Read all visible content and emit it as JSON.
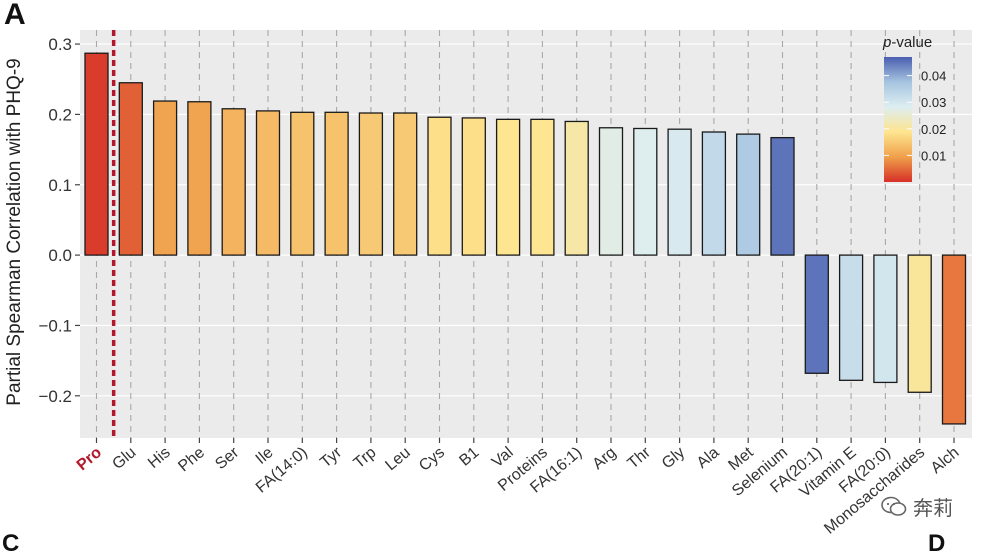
{
  "panel_label": "A",
  "bottom_labels": [
    "C",
    "D"
  ],
  "watermark": "奔莉",
  "chart_data": {
    "type": "bar",
    "title": "",
    "xlabel": "",
    "ylabel": "Partial Spearman Correlation with PHQ-9",
    "ylim": [
      -0.26,
      0.32
    ],
    "yticks": [
      -0.2,
      -0.1,
      0.0,
      0.1,
      0.2,
      0.3
    ],
    "ytick_labels": [
      "-0.2",
      "-0.1",
      "0.0",
      "0.1",
      "0.2",
      "0.3"
    ],
    "grid": true,
    "highlight": {
      "category": "Pro",
      "color": "#b2182b",
      "reference_line": "dashed, after first bar"
    },
    "categories": [
      "Pro",
      "Glu",
      "His",
      "Phe",
      "Ser",
      "Ile",
      "FA(14:0)",
      "Tyr",
      "Trp",
      "Leu",
      "Cys",
      "B1",
      "Val",
      "Proteins",
      "FA(16:1)",
      "Arg",
      "Thr",
      "Gly",
      "Ala",
      "Met",
      "Selenium",
      "FA(20:1)",
      "Vitamin E",
      "FA(20:0)",
      "Monosaccharides",
      "Alch"
    ],
    "values": [
      0.287,
      0.245,
      0.219,
      0.218,
      0.208,
      0.205,
      0.203,
      0.203,
      0.202,
      0.202,
      0.196,
      0.195,
      0.193,
      0.193,
      0.19,
      0.181,
      0.18,
      0.179,
      0.175,
      0.172,
      0.167,
      -0.168,
      -0.178,
      -0.181,
      -0.195,
      -0.24
    ],
    "pvalues": [
      0.001,
      0.004,
      0.01,
      0.01,
      0.012,
      0.013,
      0.014,
      0.014,
      0.015,
      0.015,
      0.018,
      0.018,
      0.019,
      0.019,
      0.021,
      0.027,
      0.028,
      0.029,
      0.033,
      0.036,
      0.045,
      0.045,
      0.032,
      0.03,
      0.02,
      0.006
    ],
    "legend": {
      "title_italic": "p",
      "title_rest": "-value",
      "placement": "top-right",
      "ticks": [
        0.04,
        0.03,
        0.02,
        0.01
      ],
      "tick_labels": [
        "0.04",
        "0.03",
        "0.02",
        "0.01"
      ],
      "range": [
        0.0,
        0.047
      ],
      "colors": [
        "#d73027",
        "#f0a04b",
        "#fee58f",
        "#ddeef0",
        "#a6c4e0",
        "#4a5fb0"
      ]
    }
  }
}
